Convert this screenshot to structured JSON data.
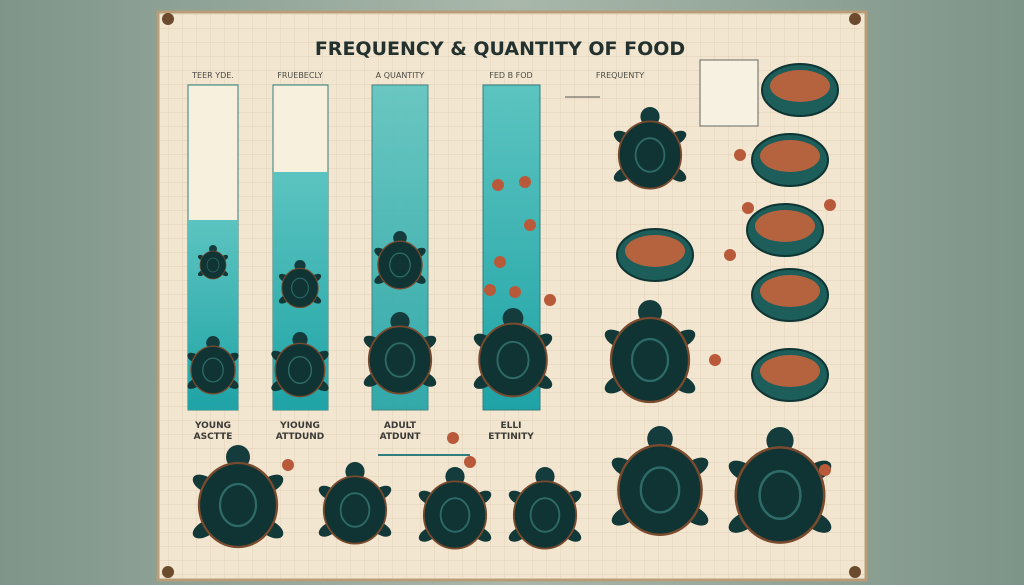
{
  "header": {
    "title": "FREQUENCY & QUANTITY OF FOOD"
  },
  "columns": [
    {
      "header": "TEER YDE.",
      "label": [
        "YOUNG",
        "ASCTTE"
      ]
    },
    {
      "header": "FRUEBECLY",
      "label": [
        "YIOUNG",
        "ATTDUND"
      ]
    },
    {
      "header": "A QUANTITY",
      "label": [
        "ADULT",
        "ATDUNT"
      ]
    },
    {
      "header": "FED B FOD",
      "label": [
        "ELLI",
        "ETTINITY"
      ]
    },
    {
      "header": "FREQUENTY",
      "label": []
    }
  ]
}
